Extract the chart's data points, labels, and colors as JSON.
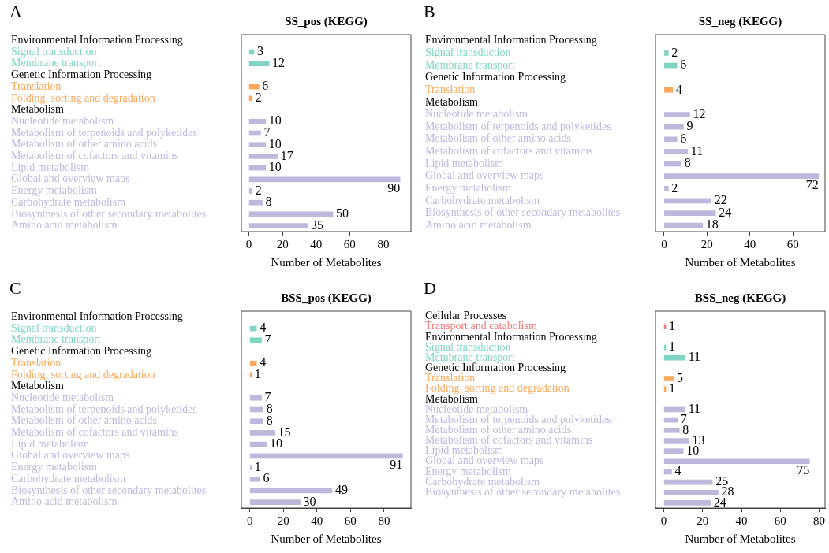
{
  "chart_data": [
    {
      "type": "bar",
      "orientation": "horizontal",
      "title": "SS_pos (KEGG)",
      "xlabel": "Number of Metabolites",
      "annotations": [
        "A"
      ],
      "categories": [
        "Environmental Information Processing",
        "Signal transduction",
        "Membrane transport",
        "Genetic Information Processing",
        "Translation",
        "Folding, sorting and degradation",
        "Metabolism",
        "Nucleotide metabolism",
        "Metabolism of terpenoids and polyketides",
        "Metabolism of other amino acids",
        "Metabolism of cofactors and vitamins",
        "Lipid metabolism",
        "Global and overview maps",
        "Energy metabolism",
        "Carbohydrate metabolism",
        "Biosynthesis of other secondary metabolites",
        "Amino acid metabolism"
      ],
      "values": [
        null,
        3,
        12,
        null,
        6,
        2,
        null,
        10,
        7,
        10,
        17,
        10,
        90,
        2,
        8,
        50,
        35
      ],
      "colors": [
        null,
        "#80d4c4",
        "#80d4c4",
        null,
        "#f9a85d",
        "#f9a85d",
        null,
        "#bdb9dd",
        "#bdb9dd",
        "#bdb9dd",
        "#bdb9dd",
        "#bdb9dd",
        "#bdb9dd",
        "#bdb9dd",
        "#bdb9dd",
        "#bdb9dd",
        "#bdb9dd"
      ],
      "xlim": [
        -4.5,
        96.5
      ],
      "xticks": [
        0,
        20,
        40,
        60,
        80
      ],
      "data_labels": true,
      "grid": false
    },
    {
      "type": "bar",
      "orientation": "horizontal",
      "title": "SS_neg (KEGG)",
      "xlabel": "Number of Metabolites",
      "annotations": [
        "B"
      ],
      "categories": [
        "Environmental Information Processing",
        "Signal transduction",
        "Membrane transport",
        "Genetic Information Processing",
        "Translation",
        "Metabolism",
        "Nucleotide metabolism",
        "Metabolism of terpenoids and polyketides",
        "Metabolism of other amino acids",
        "Metabolism of cofactors and vitamins",
        "Lipid metabolism",
        "Global and overview maps",
        "Energy metabolism",
        "Carbohydrate metabolism",
        "Biosynthesis of other secondary metabolites",
        "Amino acid metabolism"
      ],
      "values": [
        null,
        2,
        6,
        null,
        4,
        null,
        12,
        9,
        6,
        11,
        8,
        72,
        2,
        22,
        24,
        18
      ],
      "colors": [
        null,
        "#80d4c4",
        "#80d4c4",
        null,
        "#f9a85d",
        null,
        "#bdb9dd",
        "#bdb9dd",
        "#bdb9dd",
        "#bdb9dd",
        "#bdb9dd",
        "#bdb9dd",
        "#bdb9dd",
        "#bdb9dd",
        "#bdb9dd",
        "#bdb9dd"
      ],
      "xlim": [
        -4,
        75
      ],
      "xticks": [
        0,
        20,
        40,
        60
      ],
      "data_labels": true,
      "grid": false
    },
    {
      "type": "bar",
      "orientation": "horizontal",
      "title": "BSS_pos (KEGG)",
      "xlabel": "Number of Metabolites",
      "annotations": [
        "C"
      ],
      "categories": [
        "Environmental Information Processing",
        "Signal transduction",
        "Membrane transport",
        "Genetic Information Processing",
        "Translation",
        "Folding, sorting and degradation",
        "Metabolism",
        "Nucleotide metabolism",
        "Metabolism of terpenoids and polyketides",
        "Metabolism of other amino acids",
        "Metabolism of cofactors and vitamins",
        "Lipid metabolism",
        "Global and overview maps",
        "Energy metabolism",
        "Carbohydrate metabolism",
        "Biosynthesis of other secondary metabolites",
        "Amino acid metabolism"
      ],
      "values": [
        null,
        4,
        7,
        null,
        4,
        1,
        null,
        7,
        8,
        8,
        15,
        10,
        91,
        1,
        6,
        49,
        30
      ],
      "colors": [
        null,
        "#80d4c4",
        "#80d4c4",
        null,
        "#f9a85d",
        "#f9a85d",
        null,
        "#bdb9dd",
        "#bdb9dd",
        "#bdb9dd",
        "#bdb9dd",
        "#bdb9dd",
        "#bdb9dd",
        "#bdb9dd",
        "#bdb9dd",
        "#bdb9dd",
        "#bdb9dd"
      ],
      "xlim": [
        -5,
        96
      ],
      "xticks": [
        0,
        20,
        40,
        60,
        80
      ],
      "data_labels": true,
      "grid": false
    },
    {
      "type": "bar",
      "orientation": "horizontal",
      "title": "BSS_neg (KEGG)",
      "xlabel": "Number of Metabolites",
      "annotations": [
        "D"
      ],
      "categories": [
        "Cellular Processes",
        "Transport and catabolism",
        "Environmental Information Processing",
        "Signal transduction",
        "Membrane transport",
        "Genetic Information Processing",
        "Translation",
        "Folding, sorting and degradation",
        "Metabolism",
        "Nucleotide metabolism",
        "Metabolism of terpenoids and polyketides",
        "Metabolism of other amino acids",
        "Metabolism of cofactors and vitamins",
        "Lipid metabolism",
        "Global and overview maps",
        "Energy metabolism",
        "Carbohydrate metabolism",
        "Biosynthesis of other secondary metabolites",
        null
      ],
      "values": [
        null,
        1,
        null,
        1,
        11,
        null,
        5,
        1,
        null,
        11,
        7,
        8,
        13,
        10,
        75,
        4,
        25,
        28,
        24
      ],
      "colors": [
        null,
        "#f27a76",
        null,
        "#80d4c4",
        "#80d4c4",
        null,
        "#f9a85d",
        "#f9a85d",
        null,
        "#bdb9dd",
        "#bdb9dd",
        "#bdb9dd",
        "#bdb9dd",
        "#bdb9dd",
        "#bdb9dd",
        "#bdb9dd",
        "#bdb9dd",
        "#bdb9dd",
        "#bdb9dd"
      ],
      "xlim": [
        -4.3,
        83
      ],
      "xticks": [
        0,
        20,
        40,
        60,
        80
      ],
      "data_labels": true,
      "grid": false
    }
  ]
}
